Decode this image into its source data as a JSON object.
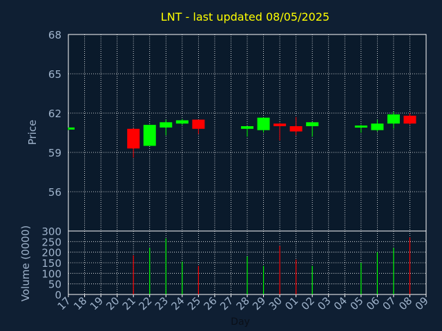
{
  "chart_data": [
    {
      "type": "candlestick",
      "title": "LNT - last updated 08/05/2025",
      "ylabel": "Price",
      "ylim": [
        53,
        68
      ],
      "y_ticks": [
        "56",
        "59",
        "62",
        "65",
        "68"
      ],
      "grid": true,
      "colors": {
        "up": "#00ff00",
        "down": "#ff0000",
        "title": "#ffff00",
        "axis_text": "#a0b4cc",
        "background": "#0f1f33",
        "plot_bg": "#0a1a2b",
        "grid": "#ffffff"
      },
      "candles": [
        {
          "x": "17",
          "open": 60.75,
          "high": 60.9,
          "low": 60.7,
          "close": 60.9
        },
        {
          "x": "21",
          "open": 60.8,
          "high": 60.85,
          "low": 58.6,
          "close": 59.3
        },
        {
          "x": "22",
          "open": 59.5,
          "high": 61.1,
          "low": 59.5,
          "close": 61.1
        },
        {
          "x": "23",
          "open": 60.9,
          "high": 61.5,
          "low": 60.3,
          "close": 61.3
        },
        {
          "x": "24",
          "open": 61.2,
          "high": 61.55,
          "low": 61.1,
          "close": 61.45
        },
        {
          "x": "25",
          "open": 61.5,
          "high": 61.5,
          "low": 60.4,
          "close": 60.8
        },
        {
          "x": "28",
          "open": 60.8,
          "high": 61.0,
          "low": 60.2,
          "close": 61.0
        },
        {
          "x": "29",
          "open": 60.7,
          "high": 61.65,
          "low": 60.5,
          "close": 61.65
        },
        {
          "x": "30",
          "open": 61.2,
          "high": 61.25,
          "low": 59.9,
          "close": 61.0
        },
        {
          "x": "01",
          "open": 61.0,
          "high": 61.7,
          "low": 60.3,
          "close": 60.6
        },
        {
          "x": "02",
          "open": 61.0,
          "high": 61.3,
          "low": 60.2,
          "close": 61.3
        },
        {
          "x": "05",
          "open": 60.95,
          "high": 61.1,
          "low": 60.5,
          "close": 61.05
        },
        {
          "x": "06",
          "open": 60.7,
          "high": 61.5,
          "low": 60.6,
          "close": 61.2
        },
        {
          "x": "07",
          "open": 61.2,
          "high": 62.1,
          "low": 60.8,
          "close": 61.9
        },
        {
          "x": "08",
          "open": 61.8,
          "high": 62.0,
          "low": 61.1,
          "close": 61.2
        }
      ]
    },
    {
      "type": "bar",
      "xlabel": "Day",
      "ylabel": "Volume (0000)",
      "ylim": [
        0,
        300
      ],
      "y_ticks": [
        "0",
        "50",
        "100",
        "150",
        "200",
        "250",
        "300"
      ],
      "categories": [
        "17",
        "18",
        "19",
        "20",
        "21",
        "22",
        "23",
        "24",
        "25",
        "26",
        "27",
        "28",
        "29",
        "30",
        "01",
        "02",
        "03",
        "04",
        "05",
        "06",
        "07",
        "08",
        "09"
      ],
      "values": [
        null,
        null,
        null,
        null,
        185,
        220,
        265,
        155,
        135,
        null,
        null,
        180,
        135,
        230,
        165,
        135,
        null,
        null,
        150,
        200,
        220,
        270,
        null
      ],
      "bar_colors": [
        "",
        "",
        "",
        "",
        "down",
        "up",
        "up",
        "up",
        "down",
        "",
        "",
        "up",
        "up",
        "down",
        "down",
        "up",
        "",
        "",
        "up",
        "up",
        "up",
        "down",
        ""
      ]
    }
  ]
}
